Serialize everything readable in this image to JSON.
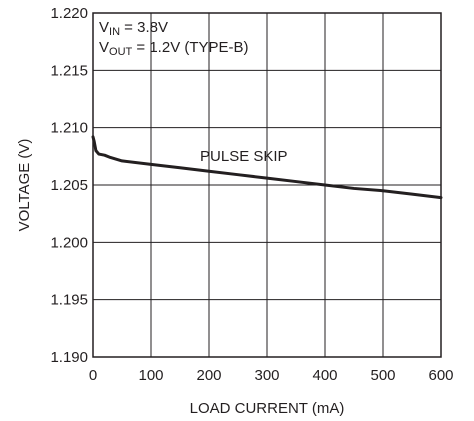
{
  "chart_data": {
    "type": "line",
    "xlabel": "LOAD CURRENT (mA)",
    "ylabel": "VOLTAGE (V)",
    "xlim": [
      0,
      600
    ],
    "ylim": [
      1.19,
      1.22
    ],
    "x_ticks": [
      0,
      100,
      200,
      300,
      400,
      500,
      600
    ],
    "x_tick_labels": [
      "0",
      "100",
      "200",
      "300",
      "400",
      "500",
      "600"
    ],
    "y_ticks": [
      1.22,
      1.215,
      1.21,
      1.205,
      1.2,
      1.195,
      1.19
    ],
    "y_tick_labels": [
      "1.220",
      "1.215",
      "1.210",
      "1.205",
      "1.200",
      "1.195",
      "1.190"
    ],
    "grid": true,
    "conditions": [
      {
        "main": "V",
        "sub": "IN",
        "rest": " = 3.8V"
      },
      {
        "main": "V",
        "sub": "OUT",
        "rest": " = 1.2V (TYPE-B)"
      }
    ],
    "series": [
      {
        "annotation": "PULSE SKIP",
        "x": [
          0,
          2,
          5,
          10,
          20,
          30,
          50,
          100,
          150,
          200,
          250,
          300,
          350,
          400,
          450,
          500,
          550,
          600
        ],
        "y": [
          1.2092,
          1.2088,
          1.208,
          1.2077,
          1.2076,
          1.2074,
          1.2071,
          1.2068,
          1.2065,
          1.2062,
          1.2059,
          1.2056,
          1.2053,
          1.205,
          1.2047,
          1.2045,
          1.2042,
          1.2039
        ]
      }
    ]
  }
}
